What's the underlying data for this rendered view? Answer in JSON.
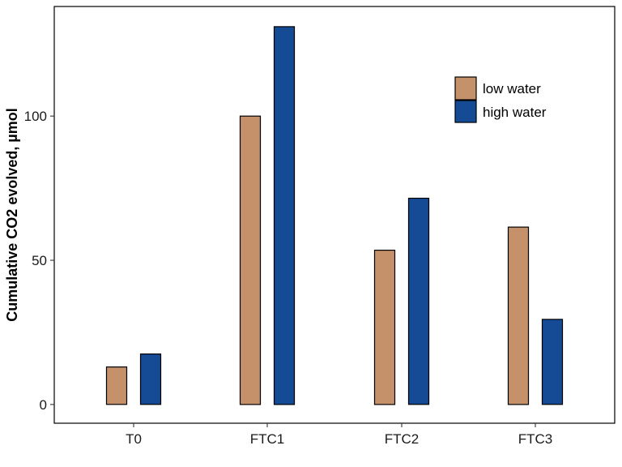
{
  "chart_data": {
    "type": "bar",
    "categories": [
      "T0",
      "FTC1",
      "FTC2",
      "FTC3"
    ],
    "series": [
      {
        "name": "low water",
        "color": "#C4916A",
        "values": [
          13,
          100,
          53.5,
          61.5
        ]
      },
      {
        "name": "high water",
        "color": "#154A94",
        "values": [
          17.5,
          131,
          71.5,
          29.5
        ]
      }
    ],
    "xlabel": "",
    "ylabel": "Cumulative CO2 evolved, µmol",
    "ylim": [
      -6.5,
      138
    ],
    "yticks": [
      0,
      50,
      100
    ],
    "grid": false,
    "legend_position": "top-right"
  }
}
